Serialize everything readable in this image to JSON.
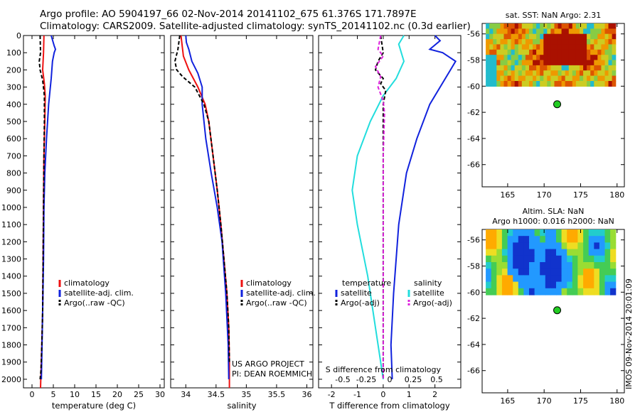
{
  "header": {
    "line1": "Argo profile: AO 5904197_66 02-Nov-2014 20141102_675 61.376S 171.7897E",
    "line2": "Climatology: CARS2009. Satellite-adjusted climatology: synTS_20141102.nc (0.3d earlier)"
  },
  "footer": {
    "stamp": "IMOS 09-Nov-2014 20:01:09"
  },
  "colors": {
    "climatology": "#ee1111",
    "satellite": "#1122dd",
    "argo": "#000000",
    "sat_s": "#22dddd",
    "argo_s": "#dd22dd",
    "marker": "#22cc22"
  },
  "chart_data": [
    {
      "type": "line",
      "id": "temperature",
      "xlabel": "temperature (deg C)",
      "ylabel": "",
      "xlim": [
        -2,
        31
      ],
      "ylim": [
        2050,
        0
      ],
      "xticks": [
        0,
        5,
        10,
        15,
        20,
        25,
        30
      ],
      "yticks": [
        0,
        100,
        200,
        300,
        400,
        500,
        600,
        700,
        800,
        900,
        1000,
        1100,
        1200,
        1300,
        1400,
        1500,
        1600,
        1700,
        1800,
        1900,
        2000
      ],
      "legend": [
        "climatology",
        "satellite-adj. clim.",
        "Argo(..raw -QC)"
      ],
      "series": [
        {
          "name": "climatology",
          "color": "#ee1111",
          "dash": false,
          "x": [
            2.8,
            2.7,
            2.6,
            2.5,
            2.9,
            3.1,
            3.0,
            2.8,
            2.7,
            2.6,
            2.5,
            2.3,
            2.0
          ],
          "y": [
            0,
            100,
            150,
            200,
            280,
            350,
            500,
            700,
            1000,
            1300,
            1600,
            1800,
            2050
          ]
        },
        {
          "name": "satellite-adj. clim.",
          "color": "#1122dd",
          "dash": false,
          "x": [
            4.5,
            5.2,
            5.5,
            5.2,
            4.8,
            4.5,
            3.9,
            3.4,
            3.0,
            2.8,
            2.7,
            2.5,
            2.2
          ],
          "y": [
            0,
            60,
            80,
            100,
            150,
            250,
            400,
            600,
            800,
            1000,
            1300,
            1600,
            2000
          ]
        },
        {
          "name": "Argo(..raw -QC)",
          "color": "#000000",
          "dash": true,
          "x": [
            1.9,
            2.0,
            1.7,
            1.9,
            2.5,
            2.9,
            2.9,
            2.8,
            2.7,
            2.6,
            2.5,
            2.3,
            2.1,
            1.9
          ],
          "y": [
            0,
            100,
            150,
            200,
            260,
            350,
            500,
            700,
            1000,
            1300,
            1600,
            1800,
            1950,
            2000
          ]
        }
      ]
    },
    {
      "type": "line",
      "id": "salinity",
      "xlabel": "salinity",
      "ylabel": "",
      "xlim": [
        33.75,
        36.1
      ],
      "ylim": [
        2050,
        0
      ],
      "xticks": [
        34,
        34.5,
        35,
        35.5,
        36
      ],
      "legend": [
        "climatology",
        "satellite-adj. clim.",
        "Argo(..raw -QC)"
      ],
      "note1": "US ARGO PROJECT",
      "note2": "PI: DEAN ROEMMICH",
      "series": [
        {
          "name": "climatology",
          "color": "#ee1111",
          "dash": false,
          "x": [
            33.92,
            33.96,
            34.05,
            34.2,
            34.32,
            34.38,
            34.45,
            34.52,
            34.58,
            34.63,
            34.68,
            34.71,
            34.72,
            34.72
          ],
          "y": [
            0,
            120,
            200,
            300,
            400,
            500,
            700,
            900,
            1100,
            1300,
            1500,
            1700,
            1900,
            2050
          ]
        },
        {
          "name": "satellite-adj. clim.",
          "color": "#1122dd",
          "dash": false,
          "x": [
            34.0,
            34.01,
            34.05,
            34.1,
            34.2,
            34.27,
            34.27,
            34.33,
            34.42,
            34.52,
            34.6,
            34.66,
            34.7,
            34.71
          ],
          "y": [
            0,
            40,
            80,
            150,
            220,
            300,
            400,
            600,
            800,
            1000,
            1200,
            1500,
            1800,
            2000
          ]
        },
        {
          "name": "Argo(..raw -QC)",
          "color": "#000000",
          "dash": true,
          "x": [
            33.9,
            33.87,
            33.82,
            33.85,
            33.95,
            34.15,
            34.3,
            34.38,
            34.45,
            34.52,
            34.58,
            34.63,
            34.68,
            34.71,
            34.72
          ],
          "y": [
            0,
            80,
            150,
            200,
            240,
            300,
            400,
            500,
            700,
            900,
            1100,
            1300,
            1500,
            1700,
            1900
          ]
        }
      ]
    },
    {
      "type": "line",
      "id": "difference",
      "xlabel": "T difference from climatology",
      "xlabel_top": "S difference from climatology",
      "xlim": [
        -2.5,
        3.0
      ],
      "ylim": [
        2050,
        0
      ],
      "xticks": [
        -2,
        -1,
        0,
        1,
        2
      ],
      "xticks_s": [
        "-0.5",
        "-0.25",
        "0",
        "0.25",
        "0.5"
      ],
      "legend_temperature": [
        "temperature",
        "satellite",
        "Argo(-adj)"
      ],
      "legend_salinity": [
        "salinity",
        "satellite",
        "Argo(-adj)"
      ],
      "series": [
        {
          "name": "satellite",
          "color": "#1122dd",
          "dash": false,
          "x": [
            2.0,
            2.2,
            1.8,
            2.3,
            2.8,
            2.4,
            1.8,
            1.3,
            0.9,
            0.6,
            0.4,
            0.3,
            0.35
          ],
          "y": [
            0,
            30,
            80,
            100,
            150,
            250,
            400,
            600,
            800,
            1100,
            1500,
            1800,
            2000
          ]
        },
        {
          "name": "salinity satellite",
          "color": "#22dddd",
          "dash": false,
          "x": [
            0.8,
            0.6,
            0.8,
            0.5,
            0.0,
            -0.5,
            -1.0,
            -1.2,
            -1.0,
            -0.6,
            -0.3,
            -0.1,
            0.0
          ],
          "y": [
            0,
            50,
            150,
            250,
            350,
            500,
            700,
            900,
            1100,
            1400,
            1700,
            1900,
            2000
          ]
        },
        {
          "name": "Argo(-adj)",
          "color": "#000000",
          "dash": true,
          "x": [
            -0.1,
            0.0,
            -0.2,
            -0.3,
            0.0,
            -0.1,
            0.1,
            0.0,
            0.0,
            0.0,
            0.0,
            0.0
          ],
          "y": [
            0,
            100,
            150,
            200,
            250,
            280,
            320,
            400,
            700,
            1200,
            1600,
            2000
          ]
        },
        {
          "name": "salinity Argo(-adj)",
          "color": "#dd22dd",
          "dash": true,
          "x": [
            -0.1,
            -0.2,
            0.0,
            -0.3,
            -0.1,
            -0.2,
            0.0,
            0.05,
            0.0,
            0.0,
            0.0,
            0.0
          ],
          "y": [
            0,
            80,
            120,
            180,
            240,
            300,
            380,
            450,
            700,
            1200,
            1600,
            2000
          ]
        }
      ]
    },
    {
      "type": "heatmap",
      "id": "sst",
      "title": "sat. SST: NaN Argo: 2.31",
      "xlim": [
        161.5,
        181
      ],
      "ylim": [
        -67.7,
        -55.2
      ],
      "xticks": [
        165,
        170,
        175,
        180
      ],
      "yticks": [
        -56,
        -58,
        -60,
        -62,
        -64,
        -66
      ],
      "field_lat_range": [
        -60,
        -55.2
      ],
      "point": {
        "lon": 171.79,
        "lat": -61.38
      }
    },
    {
      "type": "heatmap",
      "id": "sla",
      "title": "Altim. SLA: NaN",
      "subtitle": "Argo h1000: 0.016 h2000: NaN",
      "xlim": [
        161.5,
        181
      ],
      "ylim": [
        -67.7,
        -55.2
      ],
      "xticks": [
        165,
        170,
        175,
        180
      ],
      "yticks": [
        -56,
        -58,
        -60,
        -62,
        -64,
        -66
      ],
      "field_lat_range": [
        -60.2,
        -55.2
      ],
      "point": {
        "lon": 171.79,
        "lat": -61.38
      }
    }
  ]
}
